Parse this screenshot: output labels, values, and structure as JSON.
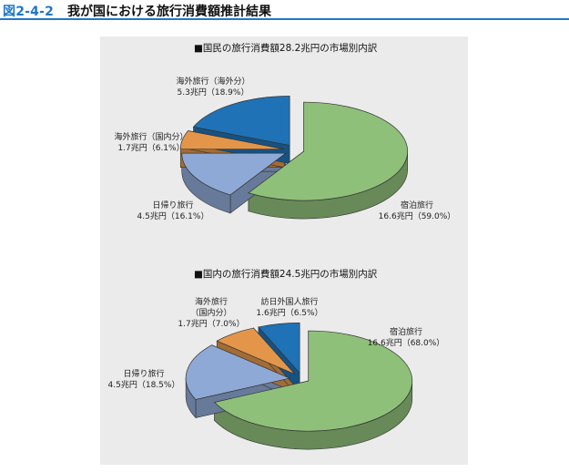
{
  "header": {
    "figure_number": "図2-4-2",
    "title": "我が国における旅行消費額推計結果"
  },
  "colors": {
    "green": "#8fc07a",
    "light_blue": "#8fa9d6",
    "orange": "#e3964a",
    "dark_blue": "#1f72b5"
  },
  "chart_data": [
    {
      "type": "pie",
      "title": "■国民の旅行消費額28.2兆円の市場別内訳",
      "slices": [
        {
          "label": "宿泊旅行",
          "value_label": "16.6兆円（59.0%）",
          "value": 16.6,
          "percent": 59.0,
          "color": "#8fc07a"
        },
        {
          "label": "日帰り旅行",
          "value_label": "4.5兆円（16.1%）",
          "value": 4.5,
          "percent": 16.1,
          "color": "#8fa9d6"
        },
        {
          "label": "海外旅行（国内分）",
          "value_label": "1.7兆円（6.1%）",
          "value": 1.7,
          "percent": 6.1,
          "color": "#e3964a"
        },
        {
          "label": "海外旅行（海外分）",
          "value_label": "5.3兆円（18.9%）",
          "value": 5.3,
          "percent": 18.9,
          "color": "#1f72b5"
        }
      ]
    },
    {
      "type": "pie",
      "title": "■国内の旅行消費額24.5兆円の市場別内訳",
      "slices": [
        {
          "label": "宿泊旅行",
          "value_label": "16.6兆円（68.0%）",
          "value": 16.6,
          "percent": 68.0,
          "color": "#8fc07a"
        },
        {
          "label": "日帰り旅行",
          "value_label": "4.5兆円（18.5%）",
          "value": 4.5,
          "percent": 18.5,
          "color": "#8fa9d6"
        },
        {
          "label": "海外旅行",
          "label_line2": "（国内分）",
          "value_label": "1.7兆円（7.0%）",
          "value": 1.7,
          "percent": 7.0,
          "color": "#e3964a"
        },
        {
          "label": "訪日外国人旅行",
          "value_label": "1.6兆円（6.5%）",
          "value": 1.6,
          "percent": 6.5,
          "color": "#1f72b5"
        }
      ]
    }
  ]
}
